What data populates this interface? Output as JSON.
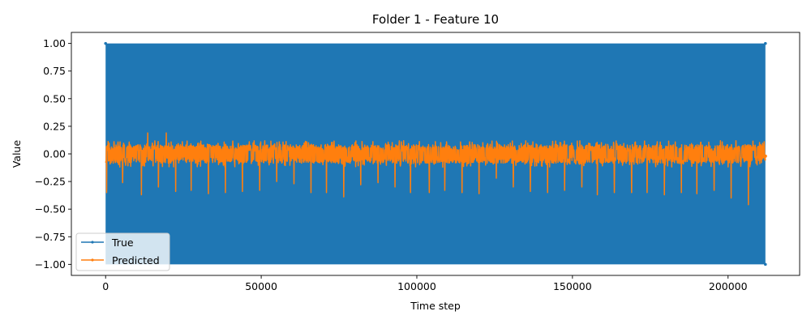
{
  "chart_data": {
    "type": "line",
    "title": "Folder 1 - Feature 10",
    "xlabel": "Time step",
    "ylabel": "Value",
    "xlim": [
      -11000,
      223000
    ],
    "ylim": [
      -1.1,
      1.1
    ],
    "x_ticks": [
      0,
      50000,
      100000,
      150000,
      200000
    ],
    "x_tick_labels": [
      "0",
      "50000",
      "100000",
      "150000",
      "200000"
    ],
    "y_ticks": [
      1.0,
      0.75,
      0.5,
      0.25,
      0.0,
      -0.25,
      -0.5,
      -0.75,
      -1.0
    ],
    "y_tick_labels": [
      "1.00",
      "0.75",
      "0.50",
      "0.25",
      "0.00",
      "−0.25",
      "−0.50",
      "−0.75",
      "−1.00"
    ],
    "grid": false,
    "legend_position": "lower-left",
    "series": [
      {
        "name": "True",
        "color": "#1f77b4",
        "x_range": [
          0,
          212000
        ],
        "description_values": [
          -1.0,
          1.0
        ],
        "pattern": "alternating between -1.0 and 1.0 at every step"
      },
      {
        "name": "Predicted",
        "color": "#ff7f0e",
        "x_range": [
          0,
          212000
        ],
        "baseline": 0.0,
        "noise_band": [
          -0.12,
          0.12
        ],
        "spikes": [
          {
            "x": 300,
            "y": -0.35
          },
          {
            "x": 5500,
            "y": -0.26
          },
          {
            "x": 11500,
            "y": -0.37
          },
          {
            "x": 17000,
            "y": -0.3
          },
          {
            "x": 22500,
            "y": -0.34
          },
          {
            "x": 27500,
            "y": -0.33
          },
          {
            "x": 33000,
            "y": -0.36
          },
          {
            "x": 38500,
            "y": -0.35
          },
          {
            "x": 44000,
            "y": -0.34
          },
          {
            "x": 49500,
            "y": -0.33
          },
          {
            "x": 55000,
            "y": -0.25
          },
          {
            "x": 60500,
            "y": -0.27
          },
          {
            "x": 66000,
            "y": -0.35
          },
          {
            "x": 71000,
            "y": -0.35
          },
          {
            "x": 76500,
            "y": -0.39
          },
          {
            "x": 82000,
            "y": -0.28
          },
          {
            "x": 87500,
            "y": -0.26
          },
          {
            "x": 93000,
            "y": -0.3
          },
          {
            "x": 98000,
            "y": -0.35
          },
          {
            "x": 104000,
            "y": -0.35
          },
          {
            "x": 109000,
            "y": -0.33
          },
          {
            "x": 114500,
            "y": -0.35
          },
          {
            "x": 120000,
            "y": -0.36
          },
          {
            "x": 125500,
            "y": -0.22
          },
          {
            "x": 131000,
            "y": -0.3
          },
          {
            "x": 136500,
            "y": -0.34
          },
          {
            "x": 142000,
            "y": -0.35
          },
          {
            "x": 147500,
            "y": -0.33
          },
          {
            "x": 153000,
            "y": -0.3
          },
          {
            "x": 158000,
            "y": -0.37
          },
          {
            "x": 163500,
            "y": -0.35
          },
          {
            "x": 169000,
            "y": -0.35
          },
          {
            "x": 174000,
            "y": -0.35
          },
          {
            "x": 179500,
            "y": -0.37
          },
          {
            "x": 185000,
            "y": -0.35
          },
          {
            "x": 190000,
            "y": -0.36
          },
          {
            "x": 195500,
            "y": -0.33
          },
          {
            "x": 201000,
            "y": -0.4
          },
          {
            "x": 206500,
            "y": -0.46
          },
          {
            "x": 212000,
            "y": -0.06
          }
        ],
        "peaks": [
          {
            "x": 5500,
            "y": 0.17
          },
          {
            "x": 13500,
            "y": 0.19
          },
          {
            "x": 19500,
            "y": 0.19
          },
          {
            "x": 33000,
            "y": 0.19
          },
          {
            "x": 49500,
            "y": 0.19
          },
          {
            "x": 66000,
            "y": 0.19
          },
          {
            "x": 87500,
            "y": 0.17
          },
          {
            "x": 120000,
            "y": 0.19
          },
          {
            "x": 158000,
            "y": 0.19
          }
        ]
      }
    ]
  }
}
